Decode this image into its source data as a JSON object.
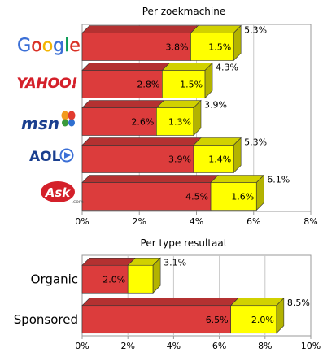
{
  "chart_data": [
    {
      "type": "bar",
      "orientation": "horizontal",
      "stacked": true,
      "style": "3d",
      "title": "Per zoekmachine",
      "categories": [
        "Google",
        "YAHOO!",
        "msn",
        "AOL",
        "Ask.com"
      ],
      "category_display": "logos",
      "series": [
        {
          "values": [
            3.8,
            2.8,
            2.6,
            3.9,
            4.5
          ],
          "color": "#dc3c3c",
          "labels": [
            "3.8%",
            "2.8%",
            "2.6%",
            "3.9%",
            "4.5%"
          ]
        },
        {
          "values": [
            1.5,
            1.5,
            1.3,
            1.4,
            1.6
          ],
          "color": "#ffff00",
          "labels": [
            "1.5%",
            "1.5%",
            "1.3%",
            "1.4%",
            "1.6%"
          ]
        }
      ],
      "totals": [
        "5.3%",
        "4.3%",
        "3.9%",
        "5.3%",
        "6.1%"
      ],
      "xlim": [
        0,
        8
      ],
      "ticks": [
        "0%",
        "2%",
        "4%",
        "6%",
        "8%"
      ],
      "grid": true
    },
    {
      "type": "bar",
      "orientation": "horizontal",
      "stacked": true,
      "style": "3d",
      "title": "Per type resultaat",
      "categories": [
        "Organic",
        "Sponsored"
      ],
      "series": [
        {
          "values": [
            2.0,
            6.5
          ],
          "color": "#dc3c3c",
          "labels": [
            "2.0%",
            "6.5%"
          ]
        },
        {
          "values": [
            1.1,
            2.0
          ],
          "color": "#ffff00",
          "labels": [
            "",
            "2.0%"
          ]
        }
      ],
      "totals": [
        "3.1%",
        "8.5%"
      ],
      "xlim": [
        0,
        10
      ],
      "ticks": [
        "0%",
        "2%",
        "4%",
        "6%",
        "8%",
        "10%"
      ],
      "grid": true
    }
  ],
  "logos": {
    "google": {
      "letters": [
        "G",
        "o",
        "o",
        "g",
        "l",
        "e"
      ],
      "colors": [
        "#3b6fd6",
        "#d93025",
        "#f4b400",
        "#3b6fd6",
        "#0f9d58",
        "#d93025"
      ]
    },
    "yahoo": {
      "text": "YAHOO!",
      "color": "#d4202a"
    },
    "msn": {
      "text": "msn",
      "color": "#1a3f8f"
    },
    "aol": {
      "text": "AOL",
      "color": "#1a3f8f"
    },
    "ask": {
      "text": "Ask",
      "suffix": ".com",
      "color": "#d4202a"
    }
  }
}
